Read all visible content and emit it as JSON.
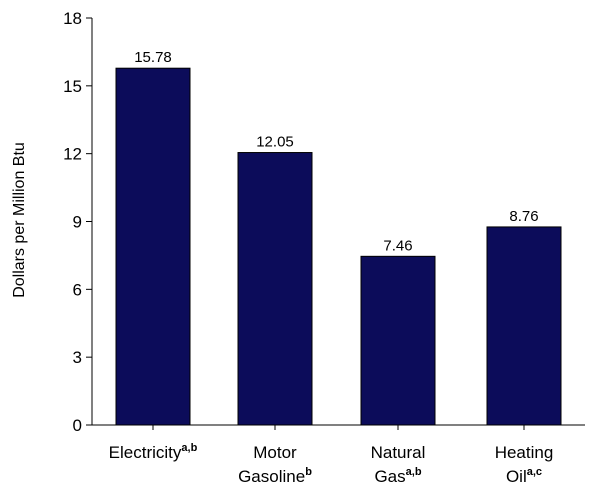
{
  "chart_data": {
    "type": "bar",
    "categories": [
      {
        "lines": [
          "Electricity"
        ],
        "sup": "a,b"
      },
      {
        "lines": [
          "Motor",
          "Gasoline"
        ],
        "sup": "b"
      },
      {
        "lines": [
          "Natural",
          "Gas"
        ],
        "sup": "a,b"
      },
      {
        "lines": [
          "Heating",
          "Oil"
        ],
        "sup": "a,c"
      }
    ],
    "values": [
      15.78,
      12.05,
      7.46,
      8.76
    ],
    "data_labels": [
      "15.78",
      "12.05",
      "7.46",
      "8.76"
    ],
    "title": "",
    "xlabel": "",
    "ylabel": "Dollars per Million Btu",
    "ylim": [
      0,
      18
    ],
    "yticks": [
      0,
      3,
      6,
      9,
      12,
      15,
      18
    ],
    "grid": false,
    "legend": "none",
    "colors": {
      "bar_fill": "#0c0c5a",
      "bar_stroke": "#000000",
      "axis": "#000000",
      "text": "#000000"
    }
  }
}
